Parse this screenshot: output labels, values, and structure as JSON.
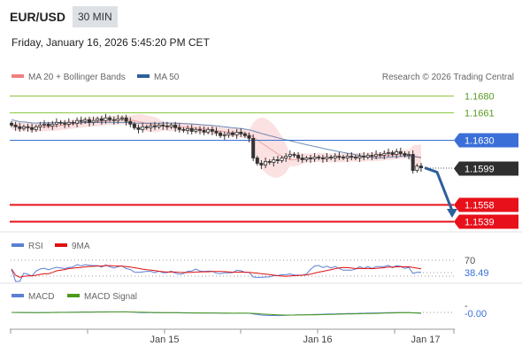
{
  "header": {
    "pair": "EUR/USD",
    "timeframe": "30 MIN",
    "datetime": "Friday, January 16, 2026 5:45:20 PM CET"
  },
  "legend": {
    "bollinger_label": "MA 20 + Bollinger Bands",
    "ma50_label": "MA 50",
    "credit": "Research © 2026 Trading Central",
    "rsi_label": "RSI",
    "rsi_ma_label": "9MA",
    "macd_label": "MACD",
    "macd_signal_label": "MACD Signal"
  },
  "colors": {
    "bollinger": "#f08080",
    "ma50": "#2d5f9a",
    "resistance_green": "#8cc63f",
    "pivot_blue": "#3a6fd8",
    "support_red": "#e8101a",
    "current_dark": "#2f2f2f",
    "arrow": "#2d5f9a",
    "rsi": "#5b7fd6",
    "rsi_ma": "#e01010",
    "macd": "#5b7fd6",
    "macd_signal": "#4a9a1a"
  },
  "chart_data": {
    "type": "candlestick",
    "price_range": [
      1.153,
      1.169
    ],
    "levels": [
      {
        "label": "1.1680",
        "value": 1.168,
        "kind": "resistance"
      },
      {
        "label": "1.1661",
        "value": 1.1661,
        "kind": "resistance"
      },
      {
        "label": "1.1630",
        "value": 1.163,
        "kind": "pivot"
      },
      {
        "label": "1.1599",
        "value": 1.1599,
        "kind": "current"
      },
      {
        "label": "1.1558",
        "value": 1.1558,
        "kind": "support"
      },
      {
        "label": "1.1539",
        "value": 1.1539,
        "kind": "support"
      }
    ],
    "x_ticks": [
      "Jan 15",
      "Jan 16",
      "Jan 17"
    ],
    "closes": [
      1.1647,
      1.1645,
      1.1643,
      1.1645,
      1.1644,
      1.1642,
      1.1645,
      1.1647,
      1.1648,
      1.1646,
      1.1648,
      1.165,
      1.1649,
      1.1648,
      1.165,
      1.1649,
      1.1652,
      1.1651,
      1.1653,
      1.165,
      1.1652,
      1.1654,
      1.1652,
      1.1655,
      1.1653,
      1.1652,
      1.1654,
      1.1655,
      1.1651,
      1.1648,
      1.1644,
      1.1642,
      1.1645,
      1.1644,
      1.1646,
      1.1645,
      1.1647,
      1.1646,
      1.1645,
      1.1647,
      1.1644,
      1.1642,
      1.1641,
      1.1643,
      1.164,
      1.1642,
      1.1641,
      1.1639,
      1.1642,
      1.164,
      1.1638,
      1.1635,
      1.1636,
      1.1638,
      1.1636,
      1.1639,
      1.1637,
      1.1635,
      1.1632,
      1.161,
      1.1604,
      1.1602,
      1.1606,
      1.1605,
      1.1608,
      1.1607,
      1.161,
      1.1612,
      1.1614,
      1.1613,
      1.161,
      1.1608,
      1.161,
      1.1609,
      1.1611,
      1.161,
      1.1609,
      1.1611,
      1.161,
      1.1612,
      1.1611,
      1.161,
      1.1612,
      1.1611,
      1.161,
      1.1612,
      1.1611,
      1.1613,
      1.1612,
      1.1614,
      1.1613,
      1.1615,
      1.1616,
      1.1614,
      1.1617,
      1.1615,
      1.1613,
      1.1614,
      1.1596,
      1.1601,
      1.1599
    ],
    "forecast": {
      "from": 1.1599,
      "to": 1.1539
    },
    "rsi": {
      "current_label": "38.49",
      "levels": [
        "70",
        "30"
      ],
      "range": [
        0,
        100
      ]
    },
    "macd": {
      "current_label": "-0.00",
      "zero_label": "-"
    }
  }
}
